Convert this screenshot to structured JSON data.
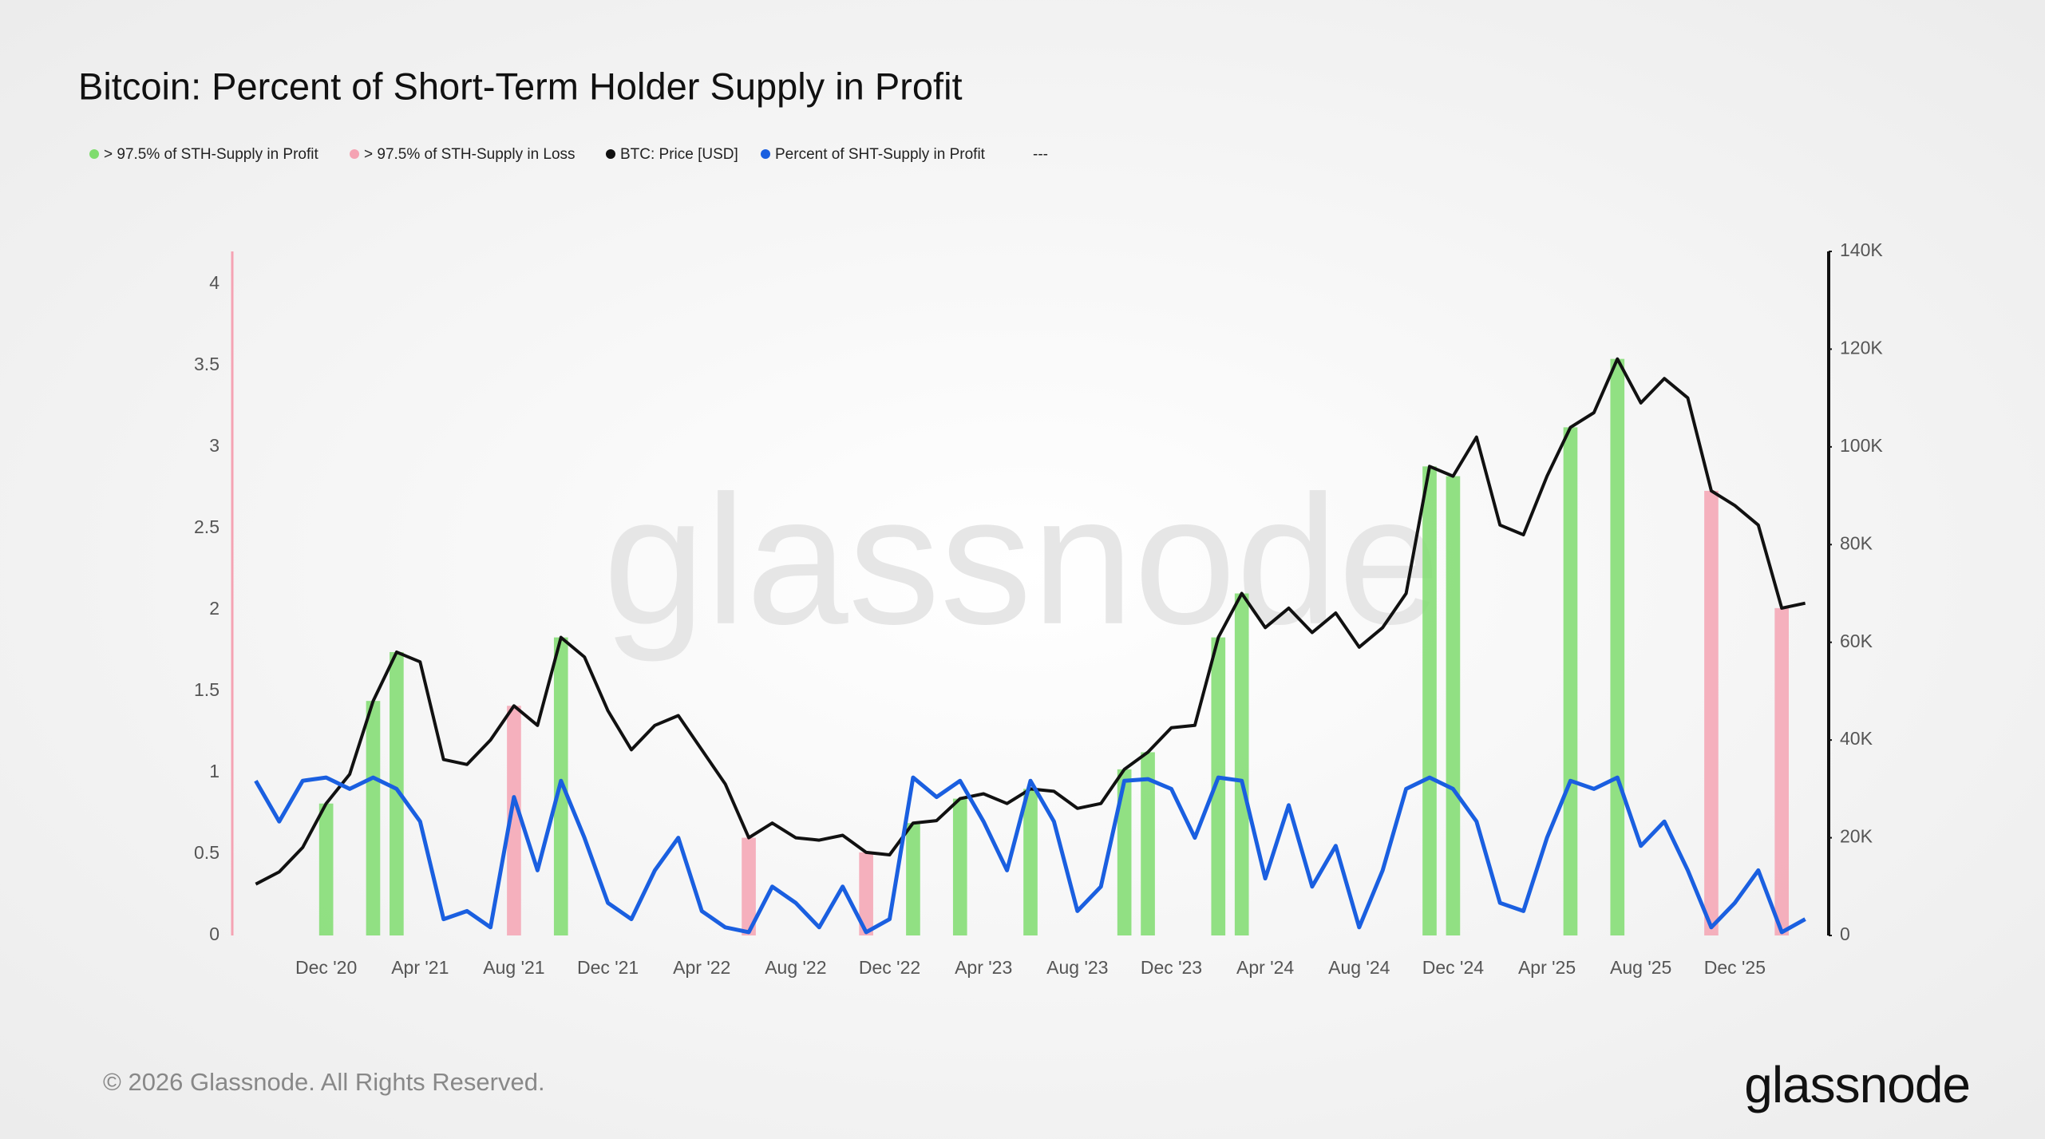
{
  "chart_data": {
    "type": "line",
    "title": "Bitcoin: Percent of Short-Term Holder Supply in Profit",
    "watermark": "glassnode",
    "logo": "glassnode",
    "footer": "© 2026 Glassnode. All Rights Reserved.",
    "legend_note": "---",
    "categories": [
      null,
      null,
      null,
      "Dec '20",
      null,
      null,
      null,
      "Apr '21",
      null,
      null,
      null,
      "Aug '21",
      null,
      null,
      null,
      "Dec '21",
      null,
      null,
      null,
      "Apr '22",
      null,
      null,
      null,
      "Aug '22",
      null,
      null,
      null,
      "Dec '22",
      null,
      null,
      null,
      "Apr '23",
      null,
      null,
      null,
      "Aug '23",
      null,
      null,
      null,
      "Dec '23",
      null,
      null,
      null,
      "Apr '24",
      null,
      null,
      null,
      "Aug '24",
      null,
      null,
      null,
      "Dec '24",
      null,
      null,
      null,
      "Apr '25",
      null,
      null,
      null,
      "Aug '25",
      null,
      null,
      null,
      "Dec '25",
      null,
      null,
      null
    ],
    "ylim": [
      0,
      4.2
    ],
    "yticks": [
      0,
      0.5,
      1,
      1.5,
      2,
      2.5,
      3,
      3.5,
      4
    ],
    "y2lim": [
      0,
      140000
    ],
    "y2ticks": [
      0,
      {
        "value": 20000,
        "label": "20K"
      },
      {
        "value": 40000,
        "label": "40K"
      },
      {
        "value": 60000,
        "label": "60K"
      },
      {
        "value": 80000,
        "label": "80K"
      },
      {
        "value": 100000,
        "label": "100K"
      },
      {
        "value": 120000,
        "label": "120K"
      },
      {
        "value": 140000,
        "label": "140K"
      }
    ],
    "grid": false,
    "series": [
      {
        "name": "> 97.5% of STH-Supply in Profit",
        "color": "#7fdc6e",
        "type": "bar",
        "axis": "y2",
        "values": [
          null,
          null,
          null,
          27000,
          null,
          48000,
          58000,
          null,
          null,
          null,
          null,
          null,
          null,
          61000,
          null,
          null,
          null,
          null,
          null,
          null,
          null,
          null,
          null,
          null,
          null,
          null,
          null,
          null,
          23000,
          null,
          28000,
          null,
          null,
          30000,
          null,
          null,
          null,
          34000,
          37500,
          null,
          null,
          61000,
          70000,
          null,
          null,
          null,
          null,
          null,
          null,
          null,
          96000,
          94000,
          null,
          null,
          null,
          null,
          104000,
          null,
          118000,
          null,
          null,
          null,
          null,
          null,
          null,
          null,
          null
        ]
      },
      {
        "name": "> 97.5% of STH-Supply in Loss",
        "color": "#f5a3b3",
        "type": "bar",
        "axis": "y2",
        "values": [
          null,
          null,
          null,
          null,
          null,
          null,
          null,
          null,
          null,
          null,
          null,
          47000,
          null,
          null,
          null,
          null,
          null,
          null,
          null,
          null,
          null,
          20000,
          null,
          null,
          null,
          null,
          17000,
          null,
          null,
          null,
          null,
          null,
          null,
          null,
          null,
          null,
          null,
          null,
          null,
          null,
          null,
          null,
          null,
          null,
          null,
          null,
          null,
          null,
          null,
          null,
          null,
          null,
          null,
          null,
          null,
          null,
          null,
          null,
          null,
          null,
          null,
          null,
          91000,
          null,
          null,
          67000,
          null
        ]
      },
      {
        "name": "BTC: Price [USD]",
        "color": "#111111",
        "type": "line",
        "axis": "y2",
        "values": [
          10500,
          13000,
          18000,
          27000,
          33000,
          48000,
          58000,
          56000,
          36000,
          35000,
          40000,
          47000,
          43000,
          61000,
          57000,
          46000,
          38000,
          43000,
          45000,
          38000,
          31000,
          20000,
          23000,
          20000,
          19500,
          20500,
          17000,
          16500,
          23000,
          23500,
          28000,
          29000,
          27000,
          30000,
          29500,
          26000,
          27000,
          34000,
          37500,
          42500,
          43000,
          61000,
          70000,
          63000,
          67000,
          62000,
          66000,
          59000,
          63000,
          70000,
          96000,
          94000,
          102000,
          84000,
          82000,
          94000,
          104000,
          107000,
          118000,
          109000,
          114000,
          110000,
          91000,
          88000,
          84000,
          67000,
          68000
        ]
      },
      {
        "name": "Percent of SHT-Supply in Profit",
        "color": "#1a5fe0",
        "type": "line",
        "values": [
          0.95,
          0.7,
          0.95,
          0.97,
          0.9,
          0.97,
          0.9,
          0.7,
          0.1,
          0.15,
          0.05,
          0.85,
          0.4,
          0.95,
          0.6,
          0.2,
          0.1,
          0.4,
          0.6,
          0.15,
          0.05,
          0.02,
          0.3,
          0.2,
          0.05,
          0.3,
          0.02,
          0.1,
          0.97,
          0.85,
          0.95,
          0.7,
          0.4,
          0.95,
          0.7,
          0.15,
          0.3,
          0.95,
          0.96,
          0.9,
          0.6,
          0.97,
          0.95,
          0.35,
          0.8,
          0.3,
          0.55,
          0.05,
          0.4,
          0.9,
          0.97,
          0.9,
          0.7,
          0.2,
          0.15,
          0.6,
          0.95,
          0.9,
          0.97,
          0.55,
          0.7,
          0.4,
          0.05,
          0.2,
          0.4,
          0.02,
          0.1
        ]
      }
    ]
  }
}
